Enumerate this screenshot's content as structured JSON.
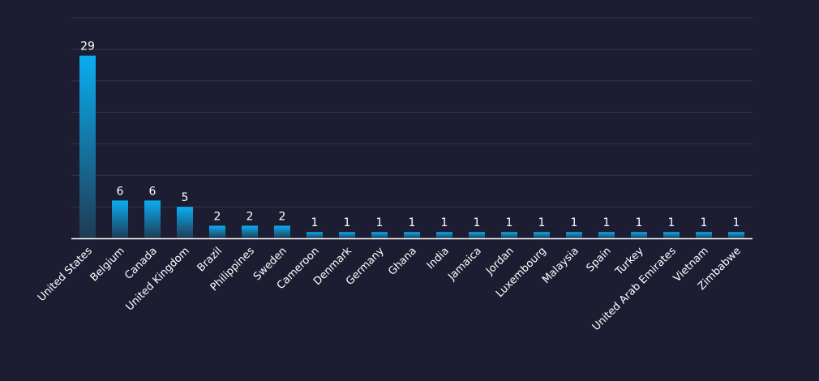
{
  "colors": {
    "background": "#1c1d32",
    "bar_top": "#0aaef0",
    "bar_bottom": "#1f3a55",
    "grid": "#34354b",
    "axis": "#ffffff",
    "text": "#ffffff"
  },
  "chart_data": {
    "type": "bar",
    "categories": [
      "United States",
      "Belgium",
      "Canada",
      "United Kingdom",
      "Brazil",
      "Philippines",
      "Sweden",
      "Cameroon",
      "Denmark",
      "Germany",
      "Ghana",
      "India",
      "Jamaica",
      "Jordan",
      "Luxembourg",
      "Malaysia",
      "Spain",
      "Turkey",
      "United Arab Emirates",
      "Vietnam",
      "Zimbabwe"
    ],
    "values": [
      29,
      6,
      6,
      5,
      2,
      2,
      2,
      1,
      1,
      1,
      1,
      1,
      1,
      1,
      1,
      1,
      1,
      1,
      1,
      1,
      1
    ],
    "title": "",
    "xlabel": "",
    "ylabel": "",
    "ylim": [
      0,
      35
    ],
    "grid": true,
    "data_labels": true,
    "legend": "none"
  }
}
